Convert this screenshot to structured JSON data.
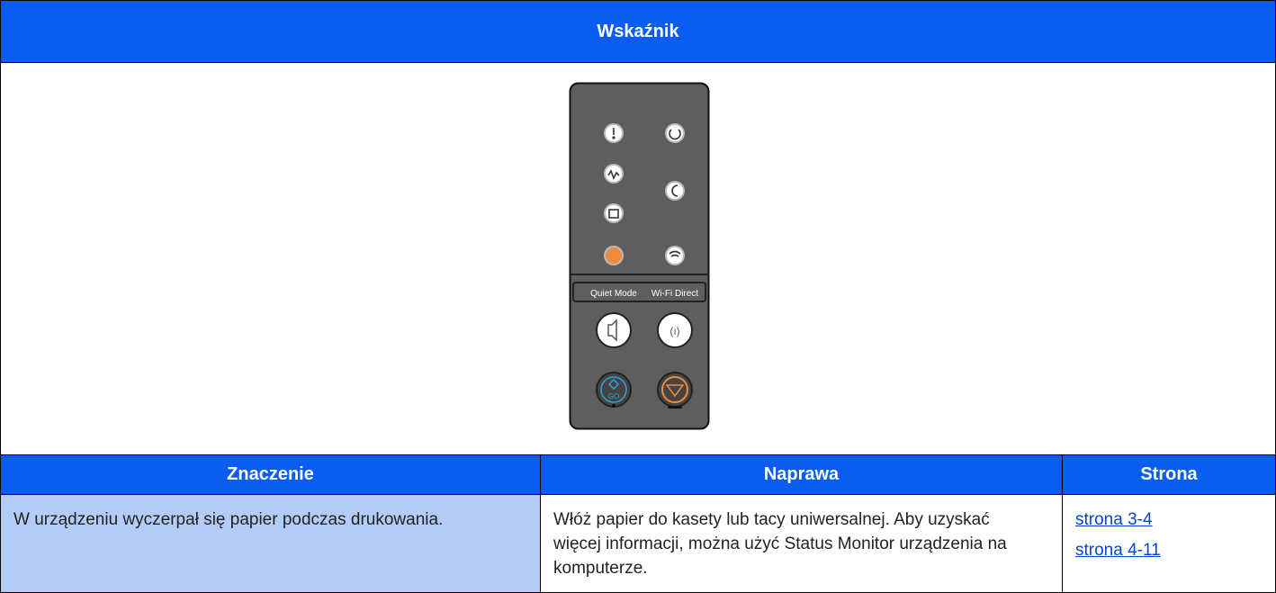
{
  "header": {
    "title": "Wskaźnik"
  },
  "panel": {
    "labels": [
      "Quiet Mode",
      "Wi-Fi Direct",
      "GO"
    ]
  },
  "table": {
    "columns": [
      "Znaczenie",
      "Naprawa",
      "Strona"
    ],
    "rows": [
      [
        "W urządzeniu wyczerpał się papier podczas drukowania.",
        "Włóż papier do kasety lub tacy uniwersalnej. Aby uzyskać więcej informacji, można użyć Status Monitor urządzenia na komputerze.",
        [
          "strona 3-4",
          "strona 4-11"
        ]
      ]
    ]
  }
}
